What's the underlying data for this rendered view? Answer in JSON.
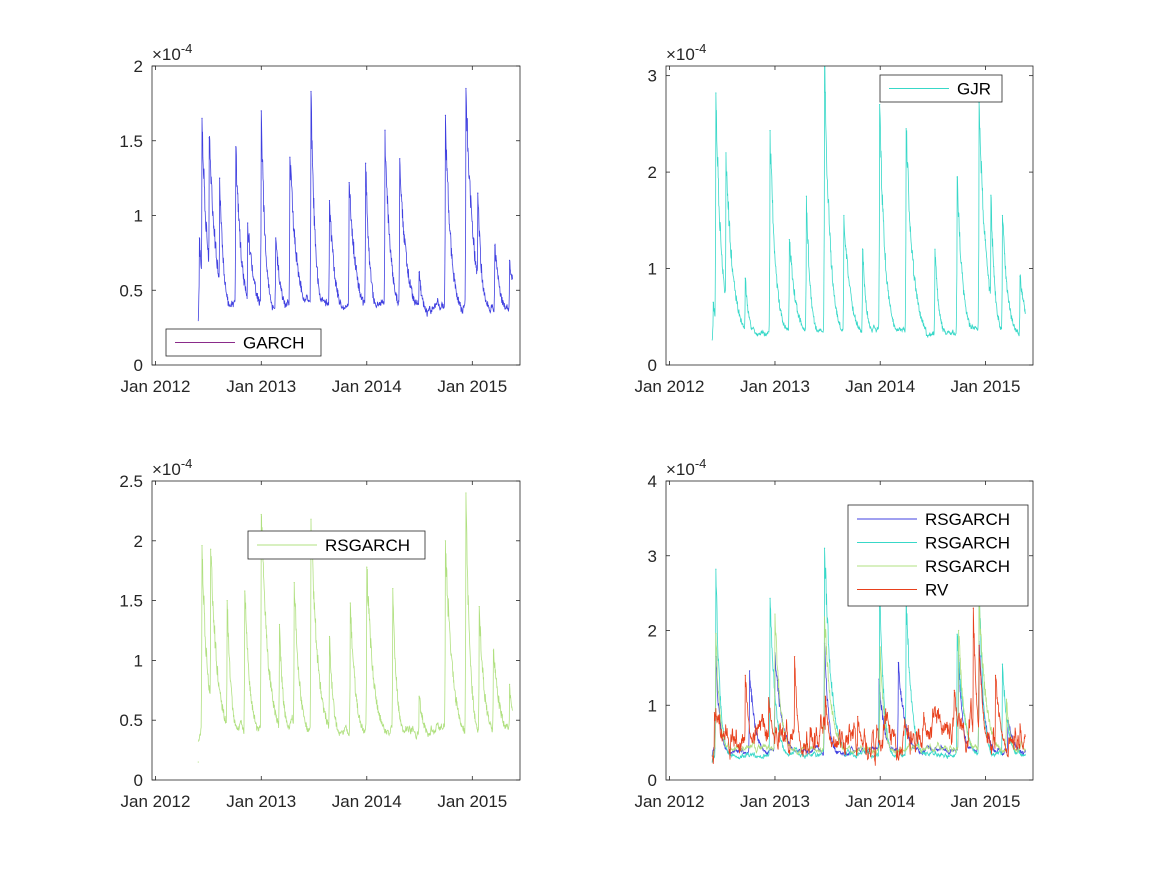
{
  "chart_data": [
    {
      "type": "line",
      "exponent_label": "×10^-4",
      "exponent_base": "×10",
      "exponent_power": "-4",
      "xlim": [
        "2011-12-20",
        "2015-06-15"
      ],
      "ylim": [
        0,
        2
      ],
      "xticks": [
        "2012-01-01",
        "2013-01-01",
        "2014-01-01",
        "2015-01-01"
      ],
      "xtick_labels": [
        "Jan 2012",
        "Jan 2013",
        "Jan 2014",
        "Jan 2015"
      ],
      "yticks": [
        0,
        0.5,
        1,
        1.5,
        2
      ],
      "ytick_labels": [
        "0",
        "0.5",
        "1",
        "1.5",
        "2"
      ],
      "legend_position": "bottom-left",
      "series": [
        {
          "name": "GARCH",
          "color": "#4040e0",
          "legend_color": "#8a2b8a",
          "base": 0.3,
          "floor_noise": 0.1,
          "values": [
            {
              "x": "2012-06-01",
              "y": 0.85
            },
            {
              "x": "2012-06-10",
              "y": 1.65
            },
            {
              "x": "2012-07-05",
              "y": 1.52
            },
            {
              "x": "2012-08-10",
              "y": 1.25
            },
            {
              "x": "2012-10-05",
              "y": 1.46
            },
            {
              "x": "2012-11-15",
              "y": 0.95
            },
            {
              "x": "2013-01-01",
              "y": 1.7
            },
            {
              "x": "2013-02-20",
              "y": 0.85
            },
            {
              "x": "2013-04-10",
              "y": 1.39
            },
            {
              "x": "2013-06-22",
              "y": 1.83
            },
            {
              "x": "2013-08-25",
              "y": 1.1
            },
            {
              "x": "2013-11-01",
              "y": 1.22
            },
            {
              "x": "2013-12-28",
              "y": 1.35
            },
            {
              "x": "2014-03-05",
              "y": 1.57
            },
            {
              "x": "2014-04-25",
              "y": 1.38
            },
            {
              "x": "2014-07-01",
              "y": 0.62
            },
            {
              "x": "2014-09-30",
              "y": 1.67
            },
            {
              "x": "2014-12-10",
              "y": 1.85
            },
            {
              "x": "2015-01-20",
              "y": 1.15
            },
            {
              "x": "2015-03-20",
              "y": 0.8
            },
            {
              "x": "2015-05-10",
              "y": 0.7
            }
          ]
        }
      ]
    },
    {
      "type": "line",
      "exponent_label": "×10^-4",
      "exponent_base": "×10",
      "exponent_power": "-4",
      "xlim": [
        "2011-12-20",
        "2015-06-15"
      ],
      "ylim": [
        0,
        3.1
      ],
      "xticks": [
        "2012-01-01",
        "2013-01-01",
        "2014-01-01",
        "2015-01-01"
      ],
      "xtick_labels": [
        "Jan 2012",
        "Jan 2013",
        "Jan 2014",
        "Jan 2015"
      ],
      "yticks": [
        0,
        1,
        2,
        3
      ],
      "ytick_labels": [
        "0",
        "1",
        "2",
        "3"
      ],
      "legend_position": "top-right",
      "series": [
        {
          "name": "GJR",
          "color": "#38d8c8",
          "base": 0.24,
          "floor_noise": 0.1,
          "values": [
            {
              "x": "2012-06-01",
              "y": 0.65
            },
            {
              "x": "2012-06-10",
              "y": 2.82
            },
            {
              "x": "2012-07-15",
              "y": 2.2
            },
            {
              "x": "2012-09-20",
              "y": 0.9
            },
            {
              "x": "2012-12-15",
              "y": 2.43
            },
            {
              "x": "2013-02-20",
              "y": 1.3
            },
            {
              "x": "2013-04-20",
              "y": 1.75
            },
            {
              "x": "2013-06-22",
              "y": 3.1
            },
            {
              "x": "2013-08-28",
              "y": 1.55
            },
            {
              "x": "2013-11-01",
              "y": 1.2
            },
            {
              "x": "2013-12-30",
              "y": 2.7
            },
            {
              "x": "2014-04-01",
              "y": 2.45
            },
            {
              "x": "2014-07-10",
              "y": 1.2
            },
            {
              "x": "2014-09-25",
              "y": 1.95
            },
            {
              "x": "2014-12-10",
              "y": 2.72
            },
            {
              "x": "2015-01-20",
              "y": 1.76
            },
            {
              "x": "2015-03-01",
              "y": 1.55
            },
            {
              "x": "2015-05-01",
              "y": 0.92
            }
          ]
        }
      ]
    },
    {
      "type": "line",
      "exponent_label": "×10^-4",
      "exponent_base": "×10",
      "exponent_power": "-4",
      "xlim": [
        "2011-12-20",
        "2015-06-15"
      ],
      "ylim": [
        0,
        2.5
      ],
      "xticks": [
        "2012-01-01",
        "2013-01-01",
        "2014-01-01",
        "2015-01-01"
      ],
      "xtick_labels": [
        "Jan 2012",
        "Jan 2013",
        "Jan 2014",
        "Jan 2015"
      ],
      "yticks": [
        0,
        0.5,
        1,
        1.5,
        2,
        2.5
      ],
      "ytick_labels": [
        "0",
        "0.5",
        "1",
        "1.5",
        "2",
        "2.5"
      ],
      "legend_position": "top-center",
      "series": [
        {
          "name": "RSGARCH",
          "color": "#b0e080",
          "base": 0.3,
          "floor_noise": 0.12,
          "values": [
            {
              "x": "2012-05-28",
              "y": 0.15
            },
            {
              "x": "2012-06-10",
              "y": 1.96
            },
            {
              "x": "2012-07-10",
              "y": 1.93
            },
            {
              "x": "2012-09-05",
              "y": 1.5
            },
            {
              "x": "2012-11-05",
              "y": 1.58
            },
            {
              "x": "2013-01-01",
              "y": 2.22
            },
            {
              "x": "2013-03-05",
              "y": 1.3
            },
            {
              "x": "2013-04-25",
              "y": 1.65
            },
            {
              "x": "2013-06-22",
              "y": 2.18
            },
            {
              "x": "2013-08-25",
              "y": 1.2
            },
            {
              "x": "2013-11-05",
              "y": 1.48
            },
            {
              "x": "2014-01-01",
              "y": 1.78
            },
            {
              "x": "2014-04-01",
              "y": 1.6
            },
            {
              "x": "2014-07-01",
              "y": 0.7
            },
            {
              "x": "2014-09-30",
              "y": 2.0
            },
            {
              "x": "2014-12-10",
              "y": 2.4
            },
            {
              "x": "2015-01-25",
              "y": 1.45
            },
            {
              "x": "2015-03-15",
              "y": 1.08
            },
            {
              "x": "2015-05-10",
              "y": 0.8
            }
          ]
        }
      ]
    },
    {
      "type": "line",
      "exponent_label": "×10^-4",
      "exponent_base": "×10",
      "exponent_power": "-4",
      "xlim": [
        "2011-12-20",
        "2015-06-15"
      ],
      "ylim": [
        0,
        4
      ],
      "xticks": [
        "2012-01-01",
        "2013-01-01",
        "2014-01-01",
        "2015-01-01"
      ],
      "xtick_labels": [
        "Jan 2012",
        "Jan 2013",
        "Jan 2014",
        "Jan 2015"
      ],
      "yticks": [
        0,
        1,
        2,
        3,
        4
      ],
      "ytick_labels": [
        "0",
        "1",
        "2",
        "3",
        "4"
      ],
      "legend_position": "top-right",
      "series": [
        {
          "name": "RSGARCH",
          "color": "#4040e0",
          "base": 0.3,
          "floor_noise": 0.1,
          "values": [
            {
              "x": "2012-06-10",
              "y": 1.65
            },
            {
              "x": "2012-10-05",
              "y": 1.46
            },
            {
              "x": "2013-01-01",
              "y": 1.7
            },
            {
              "x": "2013-06-22",
              "y": 1.83
            },
            {
              "x": "2013-12-28",
              "y": 1.35
            },
            {
              "x": "2014-03-05",
              "y": 1.57
            },
            {
              "x": "2014-09-30",
              "y": 1.67
            },
            {
              "x": "2014-12-10",
              "y": 1.85
            },
            {
              "x": "2015-03-20",
              "y": 0.8
            }
          ]
        },
        {
          "name": "RSGARCH",
          "color": "#38d8c8",
          "base": 0.24,
          "floor_noise": 0.1,
          "values": [
            {
              "x": "2012-06-10",
              "y": 2.82
            },
            {
              "x": "2012-12-15",
              "y": 2.43
            },
            {
              "x": "2013-06-22",
              "y": 3.1
            },
            {
              "x": "2013-12-30",
              "y": 2.7
            },
            {
              "x": "2014-04-01",
              "y": 2.45
            },
            {
              "x": "2014-09-25",
              "y": 1.95
            },
            {
              "x": "2014-12-10",
              "y": 2.72
            },
            {
              "x": "2015-03-01",
              "y": 1.55
            }
          ]
        },
        {
          "name": "RSGARCH",
          "color": "#b0e080",
          "base": 0.3,
          "floor_noise": 0.12,
          "values": [
            {
              "x": "2012-06-10",
              "y": 1.96
            },
            {
              "x": "2013-01-01",
              "y": 2.22
            },
            {
              "x": "2013-06-22",
              "y": 2.18
            },
            {
              "x": "2014-01-01",
              "y": 1.78
            },
            {
              "x": "2014-09-30",
              "y": 2.0
            },
            {
              "x": "2014-12-10",
              "y": 2.4
            },
            {
              "x": "2015-03-15",
              "y": 1.08
            }
          ]
        },
        {
          "name": "RV",
          "color": "#e8401c",
          "base": 0.1,
          "floor_noise": 0.55,
          "values": [
            {
              "x": "2012-06-05",
              "y": 0.9
            },
            {
              "x": "2012-09-20",
              "y": 1.4
            },
            {
              "x": "2012-12-10",
              "y": 1.1
            },
            {
              "x": "2013-03-10",
              "y": 1.65
            },
            {
              "x": "2013-06-25",
              "y": 1.12
            },
            {
              "x": "2013-10-15",
              "y": 0.85
            },
            {
              "x": "2014-01-20",
              "y": 0.95
            },
            {
              "x": "2014-06-01",
              "y": 0.9
            },
            {
              "x": "2014-09-15",
              "y": 1.2
            },
            {
              "x": "2014-11-20",
              "y": 2.3
            },
            {
              "x": "2014-12-10",
              "y": 1.8
            },
            {
              "x": "2015-02-05",
              "y": 1.4
            },
            {
              "x": "2015-05-01",
              "y": 0.75
            }
          ]
        }
      ]
    }
  ]
}
